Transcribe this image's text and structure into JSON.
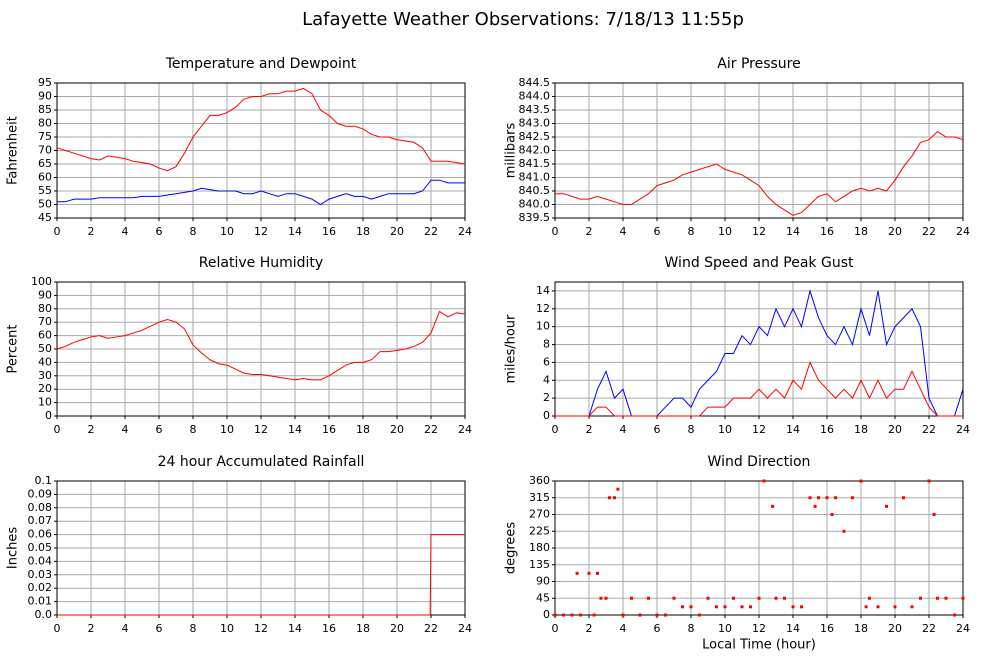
{
  "title": "Lafayette Weather Observations: 7/18/13 11:55p",
  "chart_data": [
    {
      "type": "line",
      "title": "Temperature and Dewpoint",
      "ylabel": "Fahrenheit",
      "x": [
        0,
        0.5,
        1,
        1.5,
        2,
        2.5,
        3,
        3.5,
        4,
        4.5,
        5,
        5.5,
        6,
        6.5,
        7,
        7.5,
        8,
        8.5,
        9,
        9.5,
        10,
        10.5,
        11,
        11.5,
        12,
        12.5,
        13,
        13.5,
        14,
        14.5,
        15,
        15.5,
        16,
        16.5,
        17,
        17.5,
        18,
        18.5,
        19,
        19.5,
        20,
        20.5,
        21,
        21.5,
        22,
        22.5,
        23,
        23.5,
        24
      ],
      "series": [
        {
          "color": "#ff0000",
          "values": [
            71,
            70,
            69,
            68,
            67,
            66.5,
            68,
            67.5,
            67,
            66,
            65.5,
            65,
            63.5,
            62.5,
            64,
            69,
            75,
            79,
            83,
            83,
            84,
            86,
            89,
            90,
            90,
            91,
            91,
            92,
            92,
            93,
            91,
            85,
            83,
            80,
            79,
            79,
            78,
            76,
            75,
            75,
            74,
            73.5,
            73,
            71,
            66,
            66,
            66,
            65.5,
            65
          ]
        },
        {
          "color": "#0000ff",
          "values": [
            51,
            51,
            52,
            52,
            52,
            52.5,
            52.5,
            52.5,
            52.5,
            52.5,
            53,
            53,
            53,
            53.5,
            54,
            54.5,
            55,
            56,
            55.5,
            55,
            55,
            55,
            54,
            54,
            55,
            54,
            53,
            54,
            54,
            53,
            52,
            50,
            52,
            53,
            54,
            53,
            53,
            52,
            53,
            54,
            54,
            54,
            54,
            55,
            59,
            59,
            58,
            58,
            58
          ]
        }
      ],
      "xlim": [
        0,
        24
      ],
      "xticks": [
        0,
        2,
        4,
        6,
        8,
        10,
        12,
        14,
        16,
        18,
        20,
        22,
        24
      ],
      "ylim": [
        45,
        95
      ],
      "yticks": [
        45,
        50,
        55,
        60,
        65,
        70,
        75,
        80,
        85,
        90,
        95
      ],
      "grid": true
    },
    {
      "type": "line",
      "title": "Air Pressure",
      "ylabel": "millibars",
      "x": [
        0,
        0.5,
        1,
        1.5,
        2,
        2.5,
        3,
        3.5,
        4,
        4.5,
        5,
        5.5,
        6,
        6.5,
        7,
        7.5,
        8,
        8.5,
        9,
        9.5,
        10,
        10.5,
        11,
        11.5,
        12,
        12.5,
        13,
        13.5,
        14,
        14.5,
        15,
        15.5,
        16,
        16.5,
        17,
        17.5,
        18,
        18.5,
        19,
        19.5,
        20,
        20.5,
        21,
        21.5,
        22,
        22.5,
        23,
        23.5,
        24
      ],
      "series": [
        {
          "color": "#ff0000",
          "values": [
            840.4,
            840.4,
            840.3,
            840.2,
            840.2,
            840.3,
            840.2,
            840.1,
            840.0,
            840.0,
            840.2,
            840.4,
            840.7,
            840.8,
            840.9,
            841.1,
            841.2,
            841.3,
            841.4,
            841.5,
            841.3,
            841.2,
            841.1,
            840.9,
            840.7,
            840.3,
            840.0,
            839.8,
            839.6,
            839.7,
            840.0,
            840.3,
            840.4,
            840.1,
            840.3,
            840.5,
            840.6,
            840.5,
            840.6,
            840.5,
            840.9,
            841.4,
            841.8,
            842.3,
            842.4,
            842.7,
            842.5,
            842.5,
            842.4
          ]
        }
      ],
      "xlim": [
        0,
        24
      ],
      "xticks": [
        0,
        2,
        4,
        6,
        8,
        10,
        12,
        14,
        16,
        18,
        20,
        22,
        24
      ],
      "ylim": [
        839.5,
        844.5
      ],
      "yticks": [
        839.5,
        {
          "value": 840,
          "label": "840.0"
        },
        840.5,
        {
          "value": 841,
          "label": "841.0"
        },
        841.5,
        {
          "value": 842,
          "label": "842.0"
        },
        842.5,
        {
          "value": 843,
          "label": "843.0"
        },
        843.5,
        {
          "value": 844,
          "label": "844.0"
        },
        844.5
      ],
      "grid": true
    },
    {
      "type": "line",
      "title": "Relative Humidity",
      "ylabel": "Percent",
      "x": [
        0,
        0.5,
        1,
        1.5,
        2,
        2.5,
        3,
        3.5,
        4,
        4.5,
        5,
        5.5,
        6,
        6.5,
        7,
        7.5,
        8,
        8.5,
        9,
        9.5,
        10,
        10.5,
        11,
        11.5,
        12,
        12.5,
        13,
        13.5,
        14,
        14.5,
        15,
        15.5,
        16,
        16.5,
        17,
        17.5,
        18,
        18.5,
        19,
        19.5,
        20,
        20.5,
        21,
        21.5,
        22,
        22.5,
        23,
        23.5,
        24
      ],
      "series": [
        {
          "color": "#ff0000",
          "values": [
            50,
            52,
            55,
            57,
            59,
            60,
            58,
            59,
            60,
            62,
            64,
            67,
            70,
            72,
            70,
            65,
            53,
            47,
            42,
            39,
            38,
            35,
            32,
            31,
            31,
            30,
            29,
            28,
            27,
            28,
            27,
            27,
            30,
            34,
            38,
            40,
            40,
            42,
            48,
            48,
            49,
            50,
            52,
            55,
            62,
            78,
            74,
            77,
            76
          ]
        }
      ],
      "xlim": [
        0,
        24
      ],
      "xticks": [
        0,
        2,
        4,
        6,
        8,
        10,
        12,
        14,
        16,
        18,
        20,
        22,
        24
      ],
      "ylim": [
        0,
        100
      ],
      "yticks": [
        0,
        10,
        20,
        30,
        40,
        50,
        60,
        70,
        80,
        90,
        100
      ],
      "grid": true
    },
    {
      "type": "line",
      "title": "Wind Speed and Peak Gust",
      "ylabel": "miles/hour",
      "x": [
        0,
        0.5,
        1,
        1.5,
        2,
        2.5,
        3,
        3.5,
        4,
        4.5,
        5,
        5.5,
        6,
        6.5,
        7,
        7.5,
        8,
        8.5,
        9,
        9.5,
        10,
        10.5,
        11,
        11.5,
        12,
        12.5,
        13,
        13.5,
        14,
        14.5,
        15,
        15.5,
        16,
        16.5,
        17,
        17.5,
        18,
        18.5,
        19,
        19.5,
        20,
        20.5,
        21,
        21.5,
        22,
        22.5,
        23,
        23.5,
        24
      ],
      "series": [
        {
          "color": "#0000ff",
          "values": [
            0,
            0,
            0,
            0,
            0,
            3,
            5,
            2,
            3,
            0,
            0,
            0,
            0,
            1,
            2,
            2,
            1,
            3,
            4,
            5,
            7,
            7,
            9,
            8,
            10,
            9,
            12,
            10,
            12,
            10,
            14,
            11,
            9,
            8,
            10,
            8,
            12,
            9,
            14,
            8,
            10,
            11,
            12,
            10,
            2,
            0,
            0,
            0,
            3
          ]
        },
        {
          "color": "#ff0000",
          "values": [
            0,
            0,
            0,
            0,
            0,
            1,
            1,
            0,
            0,
            0,
            0,
            0,
            0,
            0,
            0,
            0,
            0,
            0,
            1,
            1,
            1,
            2,
            2,
            2,
            3,
            2,
            3,
            2,
            4,
            3,
            6,
            4,
            3,
            2,
            3,
            2,
            4,
            2,
            4,
            2,
            3,
            3,
            5,
            3,
            1,
            0,
            0,
            0,
            0
          ]
        }
      ],
      "xlim": [
        0,
        24
      ],
      "xticks": [
        0,
        2,
        4,
        6,
        8,
        10,
        12,
        14,
        16,
        18,
        20,
        22,
        24
      ],
      "ylim": [
        0,
        15
      ],
      "yticks": [
        0,
        2,
        4,
        6,
        8,
        10,
        12,
        14
      ],
      "grid": true
    },
    {
      "type": "line",
      "title": "24 hour Accumulated Rainfall",
      "ylabel": "Inches",
      "x": [
        0,
        21.95,
        22,
        24
      ],
      "series": [
        {
          "color": "#ff0000",
          "values": [
            0,
            0,
            0.06,
            0.06
          ]
        }
      ],
      "xlim": [
        0,
        24
      ],
      "xticks": [
        0,
        2,
        4,
        6,
        8,
        10,
        12,
        14,
        16,
        18,
        20,
        22,
        24
      ],
      "ylim": [
        0,
        0.1
      ],
      "yticks": [
        {
          "value": 0,
          "label": "0.0"
        },
        0.01,
        0.02,
        0.03,
        0.04,
        0.05,
        0.06,
        0.07,
        0.08,
        0.09,
        0.1
      ],
      "grid": true
    },
    {
      "type": "scatter",
      "title": "Wind Direction",
      "ylabel": "degrees",
      "xlabel": "Local Time (hour)",
      "x": [
        0,
        0.5,
        1,
        1.3,
        1.5,
        2,
        2.3,
        2.5,
        2.7,
        3,
        3.2,
        3.5,
        3.7,
        4,
        4.5,
        5,
        5.5,
        6,
        6.5,
        7,
        7.5,
        8,
        8.5,
        9,
        9.5,
        10,
        10.5,
        11,
        11.5,
        12,
        12.3,
        12.8,
        13,
        13.5,
        14,
        14.5,
        15,
        15.3,
        15.5,
        16,
        16.3,
        16.5,
        17,
        17.5,
        18,
        18.3,
        18.5,
        19,
        19.5,
        20,
        20.5,
        21,
        21.5,
        22,
        22.3,
        22.5,
        23,
        23.5,
        24
      ],
      "series": [
        {
          "color": "#ff0000",
          "values": [
            0,
            0,
            0,
            112,
            0,
            112,
            0,
            112,
            45,
            45,
            315,
            315,
            338,
            0,
            45,
            0,
            45,
            0,
            0,
            45,
            22,
            22,
            0,
            45,
            22,
            22,
            45,
            22,
            22,
            45,
            360,
            292,
            45,
            45,
            22,
            22,
            315,
            292,
            315,
            315,
            270,
            315,
            225,
            315,
            360,
            22,
            45,
            22,
            292,
            22,
            315,
            22,
            45,
            360,
            270,
            45,
            45,
            0,
            45
          ]
        }
      ],
      "xlim": [
        0,
        24
      ],
      "xticks": [
        0,
        2,
        4,
        6,
        8,
        10,
        12,
        14,
        16,
        18,
        20,
        22,
        24
      ],
      "ylim": [
        0,
        360
      ],
      "yticks": [
        0,
        45,
        90,
        135,
        180,
        225,
        270,
        315,
        360
      ],
      "grid": true
    }
  ]
}
